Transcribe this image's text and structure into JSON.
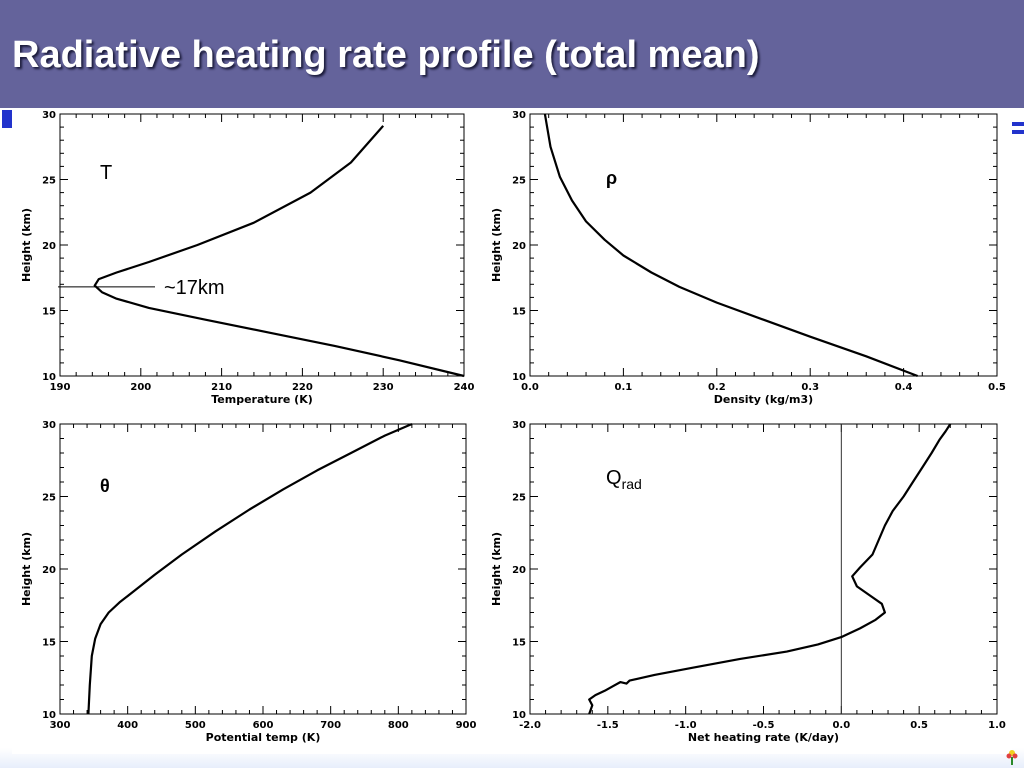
{
  "slide": {
    "title": "Radiative heating rate profile (total mean)"
  },
  "colors": {
    "title_bar": "#64639b",
    "title_text": "#ffffff",
    "accent_blue": "#2233cc",
    "curve": "#000000"
  },
  "icons": [
    "small-flower-logo-icon"
  ],
  "chart_data": [
    {
      "type": "line",
      "xlabel": "Temperature (K)",
      "ylabel": "Height (km)",
      "xlim": [
        190,
        240
      ],
      "ylim": [
        10,
        30
      ],
      "xticks": [
        190,
        200,
        210,
        220,
        230,
        240
      ],
      "yticks": [
        10,
        15,
        20,
        25,
        30
      ],
      "label": "T",
      "annotation": "~17km",
      "annotation_height": 16.8,
      "series": [
        {
          "x": [
            240,
            232,
            224,
            216,
            208,
            201,
            197,
            195.2,
            194.3,
            194.8,
            197,
            201,
            207,
            214,
            221,
            226,
            230
          ],
          "y": [
            10,
            11.2,
            12.3,
            13.3,
            14.3,
            15.2,
            15.9,
            16.4,
            16.9,
            17.4,
            17.9,
            18.7,
            20,
            21.7,
            24,
            26.3,
            29.1
          ]
        }
      ]
    },
    {
      "type": "line",
      "xlabel": "Density (kg/m3)",
      "ylabel": "Height (km)",
      "xlim": [
        0.0,
        0.5
      ],
      "ylim": [
        10,
        30
      ],
      "xticks": [
        0.0,
        0.1,
        0.2,
        0.3,
        0.4,
        0.5
      ],
      "yticks": [
        10,
        15,
        20,
        25,
        30
      ],
      "label": "ρ",
      "series": [
        {
          "x": [
            0.415,
            0.36,
            0.3,
            0.25,
            0.2,
            0.16,
            0.13,
            0.1,
            0.08,
            0.06,
            0.045,
            0.032,
            0.022,
            0.016
          ],
          "y": [
            10,
            11.5,
            13,
            14.3,
            15.6,
            16.8,
            17.9,
            19.2,
            20.4,
            21.8,
            23.4,
            25.2,
            27.5,
            30
          ]
        }
      ]
    },
    {
      "type": "line",
      "xlabel": "Potential temp (K)",
      "ylabel": "Height (km)",
      "xlim": [
        300,
        900
      ],
      "ylim": [
        10,
        30
      ],
      "xticks": [
        300,
        400,
        500,
        600,
        700,
        800,
        900
      ],
      "yticks": [
        10,
        15,
        20,
        25,
        30
      ],
      "label": "θ",
      "series": [
        {
          "x": [
            342,
            344,
            347,
            352,
            360,
            372,
            388,
            410,
            440,
            480,
            530,
            580,
            630,
            680,
            730,
            780,
            820
          ],
          "y": [
            10,
            12,
            14,
            15.2,
            16.2,
            17,
            17.7,
            18.5,
            19.6,
            21,
            22.6,
            24.1,
            25.5,
            26.8,
            28,
            29.2,
            30
          ]
        }
      ]
    },
    {
      "type": "line",
      "xlabel": "Net heating rate (K/day)",
      "ylabel": "Height (km)",
      "xlim": [
        -2.0,
        1.0
      ],
      "ylim": [
        10,
        30
      ],
      "xticks": [
        -2.0,
        -1.5,
        -1.0,
        -0.5,
        0.0,
        0.5,
        1.0
      ],
      "yticks": [
        10,
        15,
        20,
        25,
        30
      ],
      "label": "Qrad",
      "zero_line": 0.0,
      "series": [
        {
          "x": [
            -1.62,
            -1.6,
            -1.62,
            -1.58,
            -1.52,
            -1.47,
            -1.42,
            -1.38,
            -1.36,
            -1.2,
            -0.95,
            -0.65,
            -0.35,
            -0.15,
            0.0,
            0.12,
            0.22,
            0.28,
            0.26,
            0.18,
            0.1,
            0.07,
            0.12,
            0.2,
            0.24,
            0.28,
            0.33,
            0.4,
            0.46,
            0.52,
            0.58,
            0.63,
            0.67,
            0.7
          ],
          "y": [
            10,
            10.6,
            11,
            11.3,
            11.6,
            11.9,
            12.2,
            12.1,
            12.3,
            12.7,
            13.2,
            13.8,
            14.3,
            14.8,
            15.3,
            15.9,
            16.5,
            17.0,
            17.6,
            18.2,
            18.8,
            19.5,
            20.1,
            21.0,
            22.0,
            23.0,
            24.0,
            25.0,
            26.0,
            27.0,
            28.0,
            28.9,
            29.5,
            30
          ]
        }
      ]
    }
  ]
}
